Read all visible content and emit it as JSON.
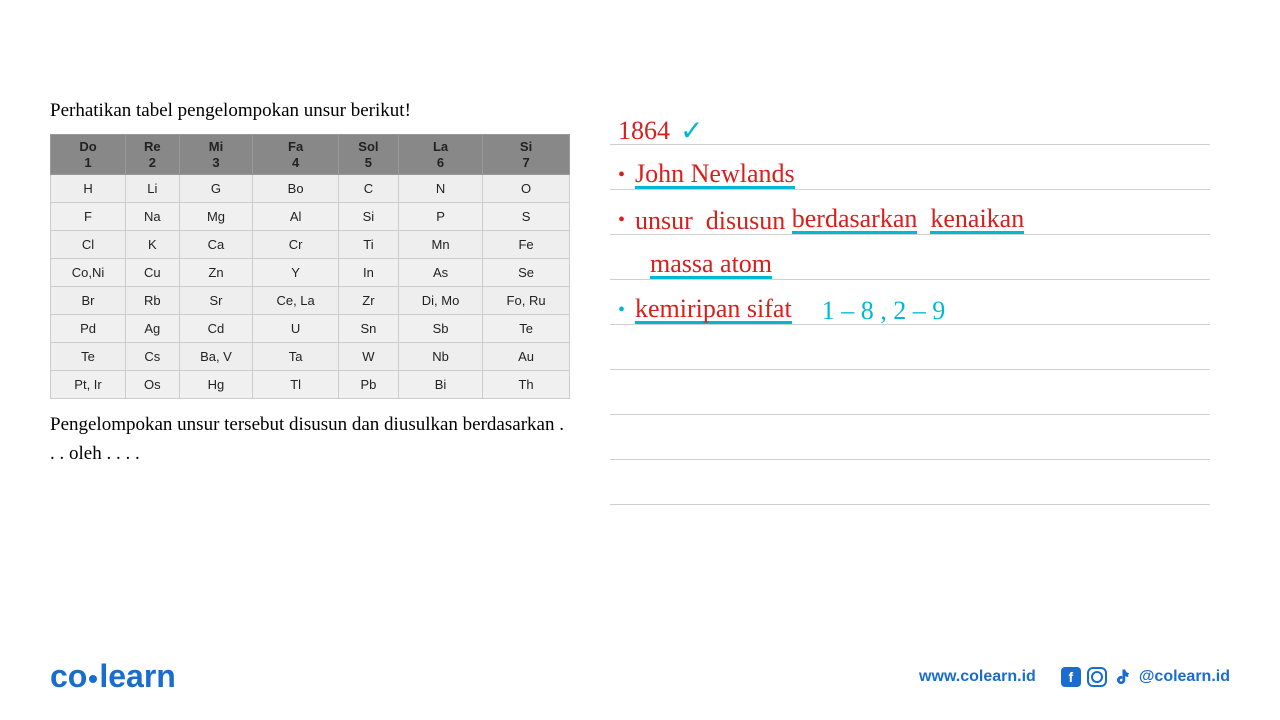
{
  "question": {
    "title": "Perhatikan tabel pengelompokan unsur berikut!",
    "footer_text": "Pengelompokan unsur tersebut disusun dan diusulkan berdasarkan . . . oleh . . . ."
  },
  "table": {
    "headers": [
      {
        "note": "Do",
        "num": "1"
      },
      {
        "note": "Re",
        "num": "2"
      },
      {
        "note": "Mi",
        "num": "3"
      },
      {
        "note": "Fa",
        "num": "4"
      },
      {
        "note": "Sol",
        "num": "5"
      },
      {
        "note": "La",
        "num": "6"
      },
      {
        "note": "Si",
        "num": "7"
      }
    ],
    "rows": [
      [
        "H",
        "Li",
        "G",
        "Bo",
        "C",
        "N",
        "O"
      ],
      [
        "F",
        "Na",
        "Mg",
        "Al",
        "Si",
        "P",
        "S"
      ],
      [
        "Cl",
        "K",
        "Ca",
        "Cr",
        "Ti",
        "Mn",
        "Fe"
      ],
      [
        "Co,Ni",
        "Cu",
        "Zn",
        "Y",
        "In",
        "As",
        "Se"
      ],
      [
        "Br",
        "Rb",
        "Sr",
        "Ce, La",
        "Zr",
        "Di, Mo",
        "Fo, Ru"
      ],
      [
        "Pd",
        "Ag",
        "Cd",
        "U",
        "Sn",
        "Sb",
        "Te"
      ],
      [
        "Te",
        "Cs",
        "Ba, V",
        "Ta",
        "W",
        "Nb",
        "Au"
      ],
      [
        "Pt, Ir",
        "Os",
        "Hg",
        "Tl",
        "Pb",
        "Bi",
        "Th"
      ]
    ]
  },
  "handwriting": {
    "year": "1864",
    "line1": "John Newlands",
    "line2a": "unsur",
    "line2b": "disusun",
    "line2c": "berdasarkan",
    "line2d": "kenaikan",
    "line3": "massa atom",
    "line4": "kemiripan sifat",
    "line4_extra": "1 – 8 , 2 – 9"
  },
  "footer": {
    "logo_co": "co",
    "logo_learn": "learn",
    "website": "www.colearn.id",
    "handle": "@colearn.id"
  },
  "colors": {
    "red": "#d91e1e",
    "cyan": "#00b8d4",
    "blue": "#1a6dd0",
    "table_header_bg": "#888",
    "table_cell_bg": "#eee"
  }
}
